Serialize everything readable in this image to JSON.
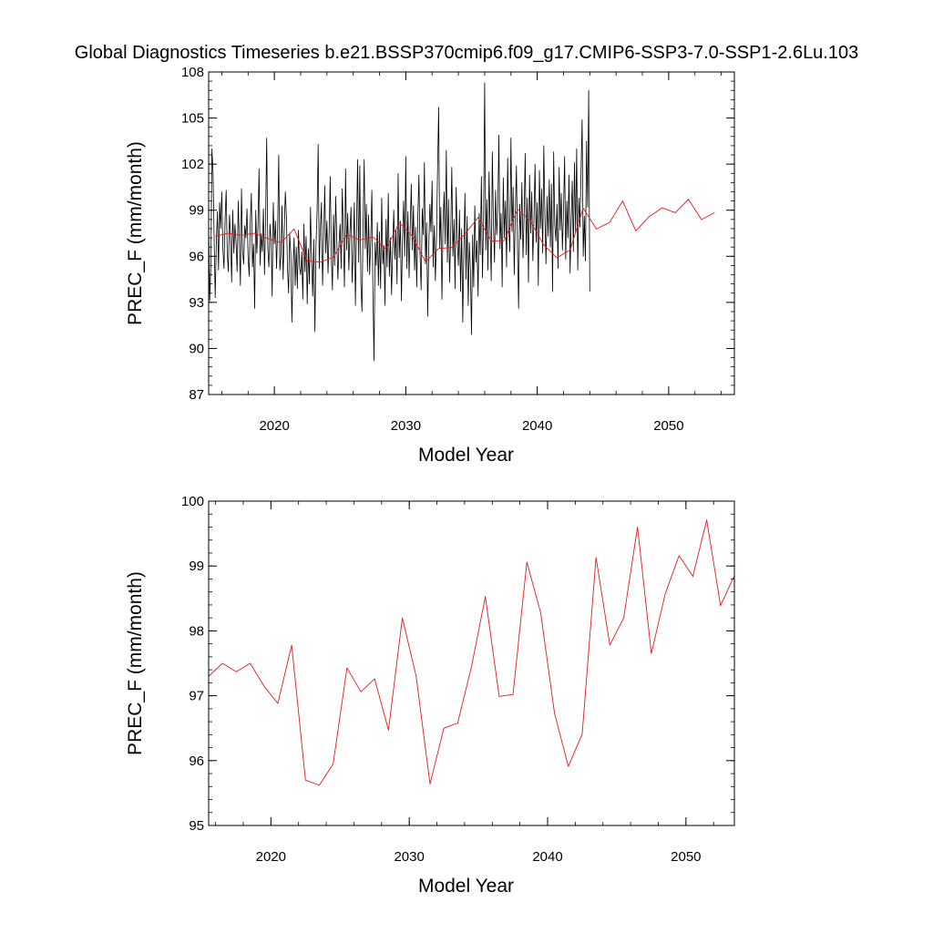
{
  "figure": {
    "title": "Global Diagnostics Timeseries b.e21.BSSP370cmip6.f09_g17.CMIP6-SSP3-7.0-SSP1-2.6Lu.103"
  },
  "colors": {
    "monthly_line": "#000000",
    "annual_line": "#e41a1c",
    "axes": "#000000",
    "background": "#ffffff"
  },
  "chart_data": [
    {
      "type": "line",
      "xlabel": "Model Year",
      "ylabel": "PREC_F (mm/month)",
      "xlim": [
        2015,
        2055
      ],
      "ylim": [
        87,
        108
      ],
      "xticks": [
        2020,
        2030,
        2040,
        2050
      ],
      "yticks": [
        87,
        90,
        93,
        96,
        99,
        102,
        105,
        108
      ],
      "series": [
        {
          "kind": "monthly",
          "color": "#000000",
          "x_start": 2015.0,
          "x_step": 0.08333333,
          "values": [
            98.2,
            93.1,
            95.4,
            103.0,
            101.5,
            97.2,
            93.3,
            96.8,
            98.9,
            95.1,
            99.5,
            97.8,
            100.2,
            96.5,
            95.2,
            98.4,
            100.3,
            96.1,
            95.0,
            98.7,
            97.4,
            94.3,
            99.0,
            96.2,
            98.1,
            96.9,
            95.0,
            99.6,
            97.1,
            94.1,
            100.4,
            96.3,
            95.5,
            98.0,
            97.2,
            99.1,
            96.0,
            94.7,
            98.2,
            100.1,
            95.3,
            96.8,
            92.6,
            99.0,
            96.2,
            97.9,
            101.7,
            95.4,
            97.5,
            96.3,
            99.1,
            94.8,
            98.4,
            103.7,
            96.5,
            95.3,
            98.1,
            97.0,
            93.4,
            99.5,
            96.8,
            98.3,
            95.2,
            97.9,
            102.6,
            95.1,
            96.0,
            99.3,
            94.5,
            97.6,
            100.2,
            98.6,
            95.2,
            93.6,
            97.5,
            96.1,
            91.7,
            95.0,
            97.2,
            94.1,
            96.6,
            93.9,
            97.7,
            95.3,
            94.8,
            96.3,
            93.2,
            98.1,
            95.0,
            97.3,
            92.9,
            96.5,
            94.2,
            99.2,
            95.8,
            93.4,
            97.1,
            91.1,
            96.7,
            98.9,
            103.3,
            95.2,
            97.8,
            99.5,
            94.1,
            97.0,
            100.6,
            96.2,
            98.3,
            94.9,
            97.5,
            101.2,
            96.1,
            93.8,
            98.7,
            95.4,
            99.9,
            97.0,
            94.5,
            96.8,
            98.1,
            95.2,
            100.4,
            97.3,
            94.0,
            101.7,
            96.4,
            98.8,
            95.1,
            97.6,
            99.2,
            94.3,
            96.2,
            99.5,
            92.8,
            97.7,
            102.3,
            95.6,
            101.9,
            94.2,
            92.4,
            97.9,
            102.3,
            96.5,
            99.4,
            95.0,
            98.7,
            94.8,
            97.1,
            100.3,
            93.6,
            89.2,
            96.9,
            95.4,
            98.2,
            94.1,
            97.6,
            93.9,
            99.8,
            95.5,
            96.7,
            92.8,
            98.4,
            95.3,
            100.1,
            94.7,
            97.2,
            93.5,
            96.3,
            99.0,
            95.8,
            97.7,
            94.2,
            101.4,
            95.9,
            98.3,
            93.1,
            97.1,
            99.6,
            96.0,
            102.5,
            95.2,
            98.9,
            94.6,
            97.8,
            100.7,
            96.4,
            99.3,
            95.1,
            97.9,
            94.0,
            98.6,
            101.3,
            96.2,
            93.8,
            99.1,
            97.4,
            102.1,
            95.5,
            98.2,
            92.1,
            96.7,
            99.4,
            97.6,
            100.9,
            95.3,
            98.0,
            94.4,
            97.2,
            101.6,
            105.7,
            96.5,
            99.2,
            93.2,
            98.1,
            100.2,
            96.8,
            102.9,
            95.6,
            99.7,
            94.3,
            97.5,
            101.8,
            96.0,
            98.4,
            93.9,
            100.5,
            97.1,
            95.4,
            99.0,
            93.7,
            97.8,
            91.7,
            96.2,
            100.1,
            94.5,
            98.6,
            92.8,
            96.9,
            95.1,
            90.9,
            97.4,
            94.0,
            99.3,
            95.6,
            97.0,
            93.4,
            98.8,
            96.1,
            101.2,
            94.6,
            98.3,
            107.3,
            96.4,
            99.7,
            95.1,
            101.5,
            97.8,
            94.4,
            102.8,
            98.2,
            95.6,
            100.3,
            97.4,
            99.1,
            103.9,
            96.5,
            98.8,
            94.0,
            101.1,
            97.2,
            99.6,
            95.3,
            102.4,
            98.0,
            96.3,
            103.7,
            97.6,
            100.5,
            94.8,
            98.9,
            101.9,
            96.7,
            92.6,
            99.4,
            97.1,
            100.8,
            95.9,
            98.6,
            102.7,
            96.1,
            99.8,
            94.3,
            101.3,
            97.5,
            100.2,
            95.7,
            98.4,
            102.0,
            96.9,
            99.5,
            94.1,
            101.6,
            97.8,
            100.4,
            96.2,
            103.2,
            98.7,
            95.5,
            99.9,
            97.3,
            101.0,
            96.6,
            100.7,
            93.7,
            102.8,
            98.1,
            97.0,
            99.4,
            95.2,
            101.8,
            97.7,
            100.1,
            96.4,
            98.9,
            102.5,
            95.8,
            99.6,
            97.2,
            101.3,
            94.9,
            98.3,
            100.9,
            96.3,
            102.1,
            97.5,
            103.0,
            95.1,
            99.8,
            97.9,
            101.5,
            104.9,
            96.0,
            98.6,
            95.7,
            103.5,
            99.2,
            106.8,
            93.7
          ]
        },
        {
          "kind": "annual",
          "color": "#e41a1c",
          "x": [
            2015.5,
            2016.5,
            2017.5,
            2018.5,
            2019.5,
            2020.5,
            2021.5,
            2022.5,
            2023.5,
            2024.5,
            2025.5,
            2026.5,
            2027.5,
            2028.5,
            2029.5,
            2030.5,
            2031.5,
            2032.5,
            2033.5,
            2034.5,
            2035.5,
            2036.5,
            2037.5,
            2038.5,
            2039.5,
            2040.5,
            2041.5,
            2042.5,
            2043.5,
            2044.5,
            2045.5,
            2046.5,
            2047.5,
            2048.5,
            2049.5,
            2050.5,
            2051.5,
            2052.5,
            2053.5
          ],
          "values": [
            97.3,
            97.5,
            97.37,
            97.5,
            97.15,
            96.88,
            97.78,
            95.7,
            95.62,
            95.95,
            97.43,
            97.06,
            97.26,
            96.47,
            98.2,
            97.3,
            95.64,
            96.5,
            96.58,
            97.45,
            98.53,
            96.99,
            97.02,
            99.06,
            98.28,
            96.73,
            95.91,
            96.41,
            99.13,
            97.78,
            98.2,
            99.6,
            97.65,
            98.57,
            99.16,
            98.84,
            99.71,
            98.39,
            98.85
          ]
        }
      ]
    },
    {
      "type": "line",
      "xlabel": "Model Year",
      "ylabel": "PREC_F (mm/month)",
      "xlim": [
        2015.5,
        2053.5
      ],
      "ylim": [
        95,
        100
      ],
      "xticks": [
        2020,
        2030,
        2040,
        2050
      ],
      "yticks": [
        95,
        96,
        97,
        98,
        99,
        100
      ],
      "series": [
        {
          "kind": "annual",
          "color": "#e41a1c",
          "x": [
            2015.5,
            2016.5,
            2017.5,
            2018.5,
            2019.5,
            2020.5,
            2021.5,
            2022.5,
            2023.5,
            2024.5,
            2025.5,
            2026.5,
            2027.5,
            2028.5,
            2029.5,
            2030.5,
            2031.5,
            2032.5,
            2033.5,
            2034.5,
            2035.5,
            2036.5,
            2037.5,
            2038.5,
            2039.5,
            2040.5,
            2041.5,
            2042.5,
            2043.5,
            2044.5,
            2045.5,
            2046.5,
            2047.5,
            2048.5,
            2049.5,
            2050.5,
            2051.5,
            2052.5,
            2053.5
          ],
          "values": [
            97.3,
            97.5,
            97.37,
            97.5,
            97.15,
            96.88,
            97.78,
            95.7,
            95.62,
            95.95,
            97.43,
            97.06,
            97.26,
            96.47,
            98.2,
            97.3,
            95.64,
            96.5,
            96.58,
            97.45,
            98.53,
            96.99,
            97.02,
            99.06,
            98.28,
            96.73,
            95.91,
            96.41,
            99.13,
            97.78,
            98.2,
            99.6,
            97.65,
            98.57,
            99.16,
            98.84,
            99.71,
            98.39,
            98.85
          ]
        }
      ]
    }
  ]
}
